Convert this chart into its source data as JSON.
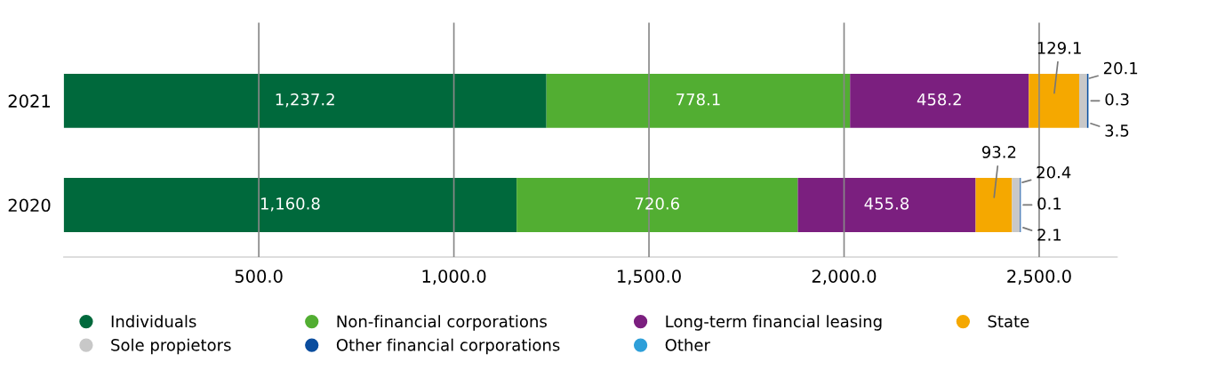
{
  "chart_data": {
    "type": "bar",
    "orientation": "horizontal",
    "stacked": true,
    "categories": [
      "2021",
      "2020"
    ],
    "series": [
      {
        "name": "Individuals",
        "color": "#00693c",
        "values": [
          1237.2,
          1160.8
        ],
        "value_labels": [
          "1,237.2",
          "1,160.8"
        ]
      },
      {
        "name": "Non-financial corporations",
        "color": "#52ae32",
        "values": [
          778.1,
          720.6
        ],
        "value_labels": [
          "778.1",
          "720.6"
        ]
      },
      {
        "name": "Long-term financial leasing",
        "color": "#7b1f7f",
        "values": [
          458.2,
          455.8
        ],
        "value_labels": [
          "458.2",
          "455.8"
        ]
      },
      {
        "name": "State",
        "color": "#f5a800",
        "values": [
          129.1,
          93.2
        ],
        "value_labels": [
          "129.1",
          "93.2"
        ]
      },
      {
        "name": "Sole propietors",
        "color": "#c8c8c8",
        "values": [
          20.1,
          20.4
        ],
        "value_labels": [
          "20.1",
          "20.4"
        ]
      },
      {
        "name": "Other financial corporations",
        "color": "#0a4d9e",
        "values": [
          3.5,
          2.1
        ],
        "value_labels": [
          "3.5",
          "2.1"
        ]
      },
      {
        "name": "Other",
        "color": "#2e9fd9",
        "values": [
          0.3,
          0.1
        ],
        "value_labels": [
          "0.3",
          "0.1"
        ]
      }
    ],
    "xlim": [
      0,
      2700
    ],
    "xticks": [
      {
        "value": 500,
        "label": "500.0"
      },
      {
        "value": 1000,
        "label": "1,000.0"
      },
      {
        "value": 1500,
        "label": "1,500.0"
      },
      {
        "value": 2000,
        "label": "2,000.0"
      },
      {
        "value": 2500,
        "label": "2,500.0"
      }
    ],
    "grid": "x",
    "legend": "bottom"
  }
}
